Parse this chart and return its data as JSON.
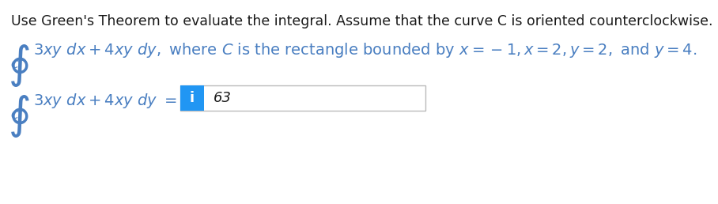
{
  "bg_color": "#ffffff",
  "text_color": "#4a7fc1",
  "dark_text_color": "#1a1a1a",
  "line1": "Use Green's Theorem to evaluate the integral. Assume that the curve C is oriented counterclockwise.",
  "answer": "63",
  "box_bg": "#ffffff",
  "box_border": "#bbbbbb",
  "badge_color": "#2196f3",
  "badge_text": "i",
  "font_size_line1": 12.5,
  "font_size_math": 14,
  "font_size_answer": 13,
  "font_size_integral": 28,
  "font_size_C": 10
}
